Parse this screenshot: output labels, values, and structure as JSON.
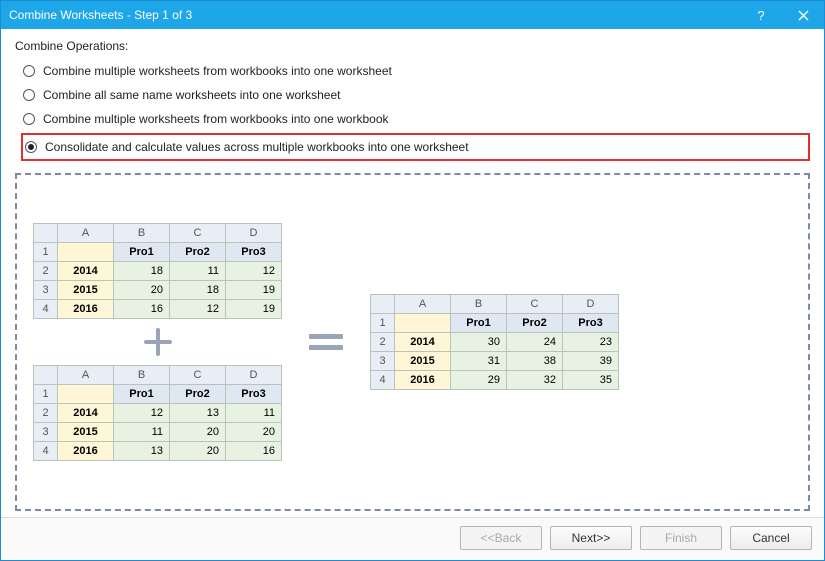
{
  "window": {
    "title": "Combine Worksheets - Step 1 of 3"
  },
  "section_label": "Combine Operations:",
  "options": {
    "opt1": "Combine multiple worksheets from workbooks into one worksheet",
    "opt2": "Combine all same name worksheets into one worksheet",
    "opt3": "Combine multiple worksheets from workbooks into one workbook",
    "opt4": "Consolidate and calculate values across multiple workbooks into one worksheet"
  },
  "selected_option": 4,
  "colors": {
    "titlebar_bg": "#1ea7e8",
    "highlight_border": "#e03030",
    "dashed_border": "#7a8aa8",
    "col_header_bg": "#e9edf5",
    "label_col_bg": "#fff6d8",
    "data_header_bg": "#dfe7f2",
    "value_bg": "#e8f2e3",
    "cell_border": "#b7c5b9"
  },
  "tables": {
    "columns_letters": [
      "A",
      "B",
      "C",
      "D"
    ],
    "row_numbers": [
      "1",
      "2",
      "3",
      "4"
    ],
    "data_headers": [
      "Pro1",
      "Pro2",
      "Pro3"
    ],
    "t1": {
      "years": [
        "2014",
        "2015",
        "2016"
      ],
      "rows": [
        [
          18,
          11,
          12
        ],
        [
          20,
          18,
          19
        ],
        [
          16,
          12,
          19
        ]
      ]
    },
    "t2": {
      "years": [
        "2014",
        "2015",
        "2016"
      ],
      "rows": [
        [
          12,
          13,
          11
        ],
        [
          11,
          20,
          20
        ],
        [
          13,
          20,
          16
        ]
      ]
    },
    "result": {
      "years": [
        "2014",
        "2015",
        "2016"
      ],
      "rows": [
        [
          30,
          24,
          23
        ],
        [
          31,
          38,
          39
        ],
        [
          29,
          32,
          35
        ]
      ]
    }
  },
  "buttons": {
    "back": "<<Back",
    "next": "Next>>",
    "finish": "Finish",
    "cancel": "Cancel"
  }
}
